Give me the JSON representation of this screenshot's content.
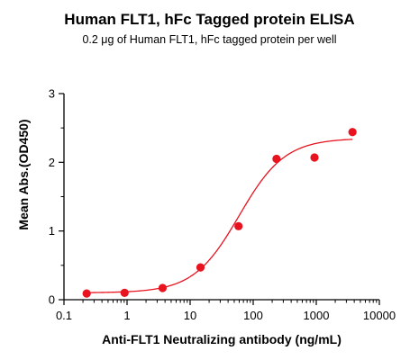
{
  "chart_data": {
    "type": "scatter",
    "title": "Human FLT1, hFc Tagged protein ELISA",
    "subtitle": "0.2 μg of Human FLT1, hFc tagged protein per well",
    "xlabel": "Anti-FLT1 Neutralizing antibody (ng/mL)",
    "ylabel": "Mean Abs.(OD450)",
    "xscale": "log",
    "xlim": [
      0.1,
      10000
    ],
    "ylim": [
      0,
      3
    ],
    "xticks": [
      "0.1",
      "1",
      "10",
      "100",
      "1000",
      "10000"
    ],
    "yticks": [
      "0",
      "1",
      "2",
      "3"
    ],
    "grid": false,
    "colors": {
      "points": "#e8131f",
      "curve": "#e8131f",
      "axis": "#000000"
    },
    "series": [
      {
        "x": [
          0.229,
          0.914,
          3.66,
          14.6,
          58.5,
          234,
          937,
          3750
        ],
        "y": [
          0.09,
          0.1,
          0.17,
          0.47,
          1.07,
          2.05,
          2.07,
          2.44
        ]
      }
    ],
    "fit": {
      "type": "4PL",
      "bottom": 0.1,
      "top": 2.35,
      "ec50": 60,
      "hill": 1.2,
      "x_range": [
        0.229,
        3750
      ]
    }
  }
}
